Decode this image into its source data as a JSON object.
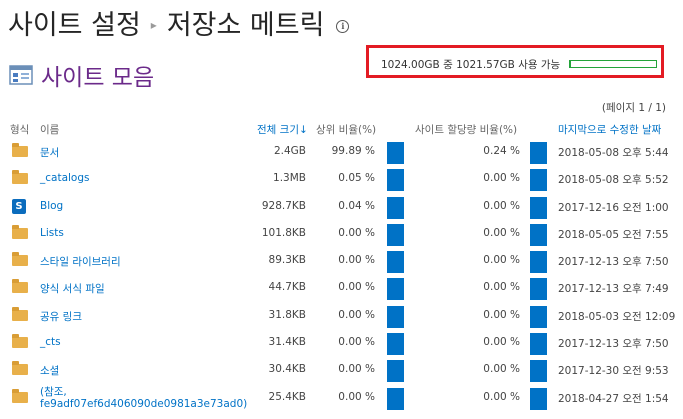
{
  "breadcrumb": {
    "root": "사이트 설정",
    "current": "저장소 메트릭"
  },
  "section": {
    "title": "사이트 모음"
  },
  "quota": {
    "text": "1024.00GB 중 1021.57GB 사용 가능",
    "used_fraction": 0.0024
  },
  "pager": "(페이지 1 / 1)",
  "columns": {
    "type": "형식",
    "name": "이름",
    "total_size": "전체 크기↓",
    "parent_pct": "상위 비율(%)",
    "quota_pct": "사이트 할당량 비율(%)",
    "modified": "마지막으로 수정한 날짜"
  },
  "rows": [
    {
      "icon": "folder-icon",
      "name": "문서",
      "size": "2.4GB",
      "parent_pct": "99.89 %",
      "quota_pct": "0.24 %",
      "modified": "2018-05-08 오후 5:44"
    },
    {
      "icon": "folder-icon",
      "name": "_catalogs",
      "size": "1.3MB",
      "parent_pct": "0.05 %",
      "quota_pct": "0.00 %",
      "modified": "2018-05-08 오후 5:52"
    },
    {
      "icon": "sharepoint-icon",
      "name": "Blog",
      "size": "928.7KB",
      "parent_pct": "0.04 %",
      "quota_pct": "0.00 %",
      "modified": "2017-12-16 오전 1:00"
    },
    {
      "icon": "folder-icon",
      "name": "Lists",
      "size": "101.8KB",
      "parent_pct": "0.00 %",
      "quota_pct": "0.00 %",
      "modified": "2018-05-05 오전 7:55"
    },
    {
      "icon": "folder-icon",
      "name": "스타일 라이브러리",
      "size": "89.3KB",
      "parent_pct": "0.00 %",
      "quota_pct": "0.00 %",
      "modified": "2017-12-13 오후 7:50"
    },
    {
      "icon": "folder-icon",
      "name": "양식 서식 파일",
      "size": "44.7KB",
      "parent_pct": "0.00 %",
      "quota_pct": "0.00 %",
      "modified": "2017-12-13 오후 7:49"
    },
    {
      "icon": "folder-icon",
      "name": "공유 링크",
      "size": "31.8KB",
      "parent_pct": "0.00 %",
      "quota_pct": "0.00 %",
      "modified": "2018-05-03 오전 12:09"
    },
    {
      "icon": "folder-icon",
      "name": "_cts",
      "size": "31.4KB",
      "parent_pct": "0.00 %",
      "quota_pct": "0.00 %",
      "modified": "2017-12-13 오후 7:50"
    },
    {
      "icon": "folder-icon",
      "name": "소셜",
      "size": "30.4KB",
      "parent_pct": "0.00 %",
      "quota_pct": "0.00 %",
      "modified": "2017-12-30 오전 9:53"
    },
    {
      "icon": "folder-icon",
      "name": "(참조,",
      "name2": "fe9adf07ef6d406090de0981a3e73ad0)",
      "size": "25.4KB",
      "parent_pct": "0.00 %",
      "quota_pct": "0.00 %",
      "modified": "2018-04-27 오전 1:54"
    }
  ],
  "colors": {
    "accent": "#0072c6",
    "title_purple": "#6b2a8a",
    "highlight_red": "#e31b23",
    "quota_green": "#23a33a"
  }
}
